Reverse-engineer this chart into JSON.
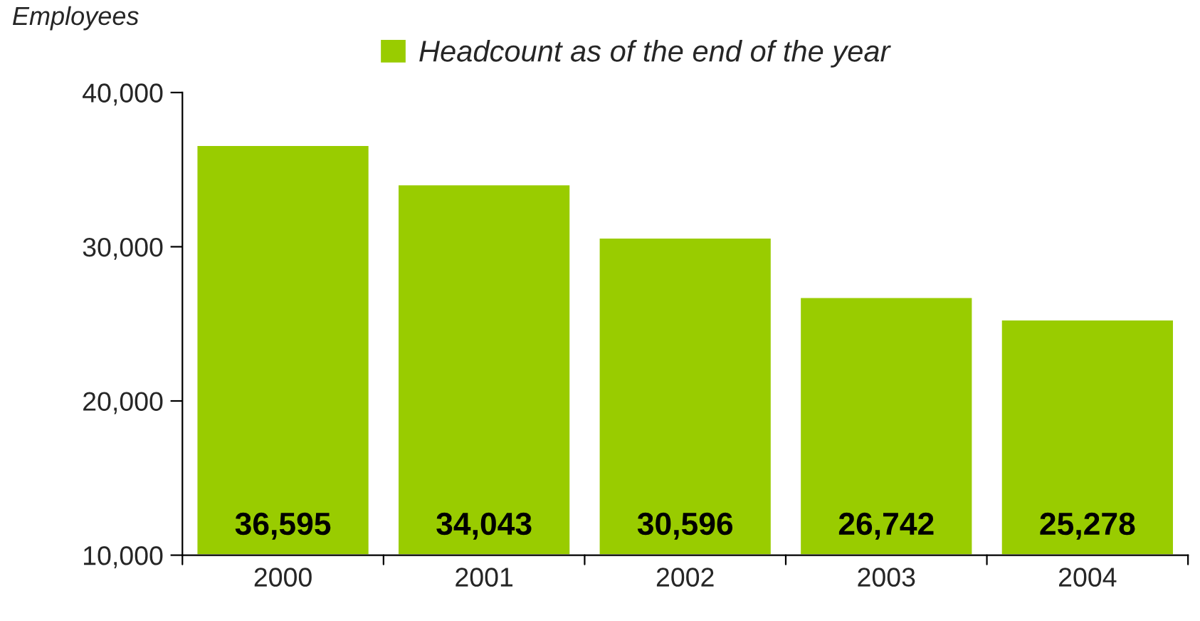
{
  "chart_data": {
    "type": "bar",
    "ylabel": "Employees",
    "categories": [
      "2000",
      "2001",
      "2002",
      "2003",
      "2004"
    ],
    "series": [
      {
        "name": "Headcount as of the end of the year",
        "color": "#99cc00",
        "values": [
          36595,
          34043,
          30596,
          26742,
          25278
        ],
        "value_labels": [
          "36,595",
          "34,043",
          "30,596",
          "26,742",
          "25,278"
        ]
      }
    ],
    "ylim": [
      10000,
      40000
    ],
    "yticks": [
      {
        "value": 10000,
        "label": "10,000"
      },
      {
        "value": 20000,
        "label": "20,000"
      },
      {
        "value": 30000,
        "label": "30,000"
      },
      {
        "value": 40000,
        "label": "40,000"
      }
    ],
    "grid": false,
    "legend": "top"
  }
}
